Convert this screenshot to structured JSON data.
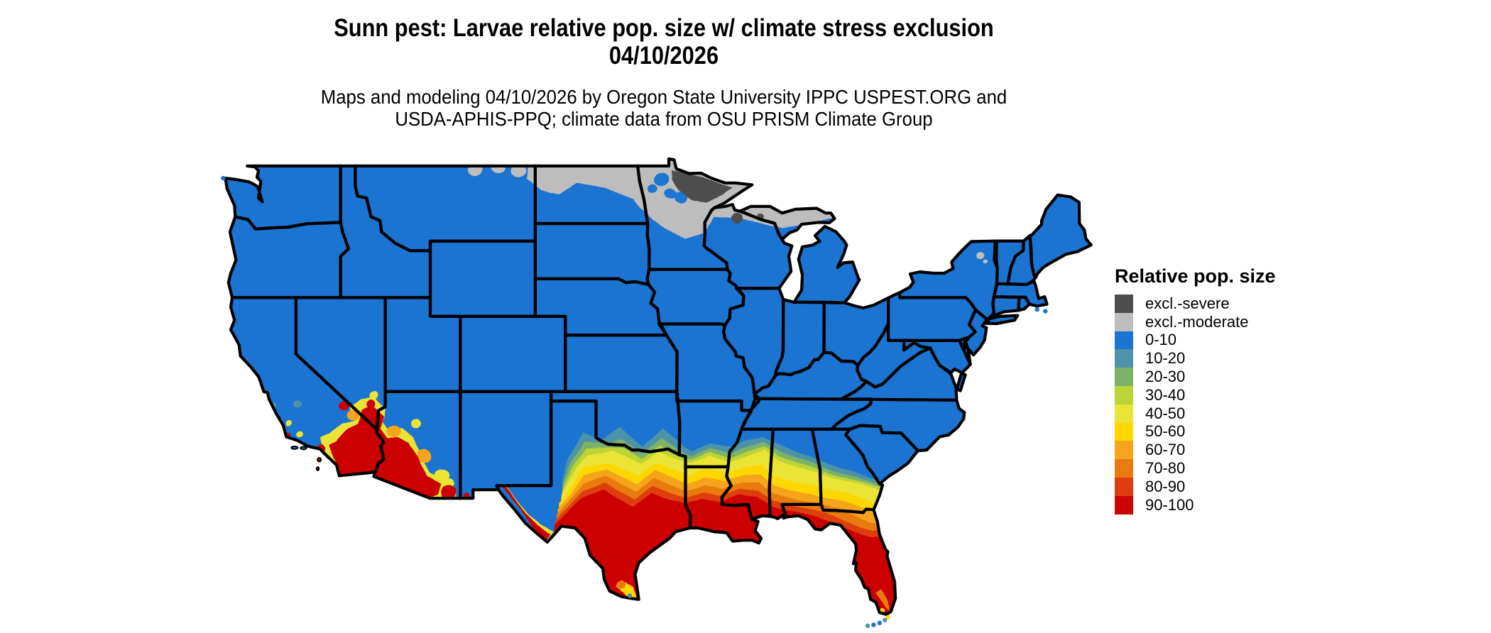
{
  "title": {
    "line1": "Sunn pest: Larvae relative pop. size w/ climate stress exclusion",
    "line2": "04/10/2026"
  },
  "subtitle": {
    "line1": "Maps and modeling 04/10/2026 by Oregon State University IPPC USPEST.ORG and",
    "line2": "USDA-APHIS-PPQ; climate data from OSU PRISM Climate Group"
  },
  "legend": {
    "title": "Relative pop. size",
    "entries": [
      {
        "key": "excl-severe",
        "label": "excl.-severe",
        "color": "#4D4D4D"
      },
      {
        "key": "excl-moderate",
        "label": "excl.-moderate",
        "color": "#BDBDBD"
      },
      {
        "key": "0-10",
        "label": "0-10",
        "color": "#1B74D1"
      },
      {
        "key": "10-20",
        "label": "10-20",
        "color": "#4E93A7"
      },
      {
        "key": "20-30",
        "label": "20-30",
        "color": "#7DB269"
      },
      {
        "key": "30-40",
        "label": "30-40",
        "color": "#BCD435"
      },
      {
        "key": "40-50",
        "label": "40-50",
        "color": "#E9E436"
      },
      {
        "key": "50-60",
        "label": "50-60",
        "color": "#FFD700"
      },
      {
        "key": "60-70",
        "label": "60-70",
        "color": "#F5A41B"
      },
      {
        "key": "70-80",
        "label": "70-80",
        "color": "#E97A10"
      },
      {
        "key": "80-90",
        "label": "80-90",
        "color": "#DE3D0D"
      },
      {
        "key": "90-100",
        "label": "90-100",
        "color": "#CC0303"
      }
    ]
  },
  "map": {
    "background": "#FFFFFF",
    "state_border_color": "#000000",
    "base_class": "0-10"
  },
  "chart_data": {
    "type": "heatmap",
    "title": "Sunn pest: Larvae relative pop. size w/ climate stress exclusion 04/10/2026",
    "geography": "contiguous United States with state borders",
    "classes": [
      "excl.-severe",
      "excl.-moderate",
      "0-10",
      "10-20",
      "20-30",
      "30-40",
      "40-50",
      "50-60",
      "60-70",
      "70-80",
      "80-90",
      "90-100"
    ],
    "legend_position": "right",
    "regions_by_class": [
      {
        "class": "excl.-severe",
        "where": "northeastern Minnesota arrowhead; small patches in northern Wisconsin / upper Michigan"
      },
      {
        "class": "excl.-moderate",
        "where": "northern Montana and North Dakota strip, most of northern Minnesota, northern Wisconsin, central upper Michigan, small Adirondack spots in New York"
      },
      {
        "class": "0-10",
        "where": "majority of the country (base blue)"
      },
      {
        "class": "10-20",
        "where": "transition band across northern Texas / southern Oklahoma, central Mississippi-Alabama-Georgia; specks in coastal California"
      },
      {
        "class": "20-30",
        "where": "thin transition fringe south of the 10-20 band"
      },
      {
        "class": "30-40",
        "where": "thin transition fringe north of the yellow band"
      },
      {
        "class": "40-50",
        "where": "band across north-central Texas into southern Georgia"
      },
      {
        "class": "50-60",
        "where": "band through central Texas, southern Mississippi/Alabama/Georgia, fringes of desert Southwest"
      },
      {
        "class": "60-70",
        "where": "band north of red zone, Florida panhandle fringe"
      },
      {
        "class": "70-80",
        "where": "band adjacent to red core, Gulf coast fringe"
      },
      {
        "class": "80-90",
        "where": "rim of red core in Texas, Louisiana, Gulf coast, Florida panhandle"
      },
      {
        "class": "90-100",
        "where": "southern/central Texas, southern Louisiana, Gulf coast, Florida peninsula, southern Arizona and southeastern California"
      }
    ]
  }
}
